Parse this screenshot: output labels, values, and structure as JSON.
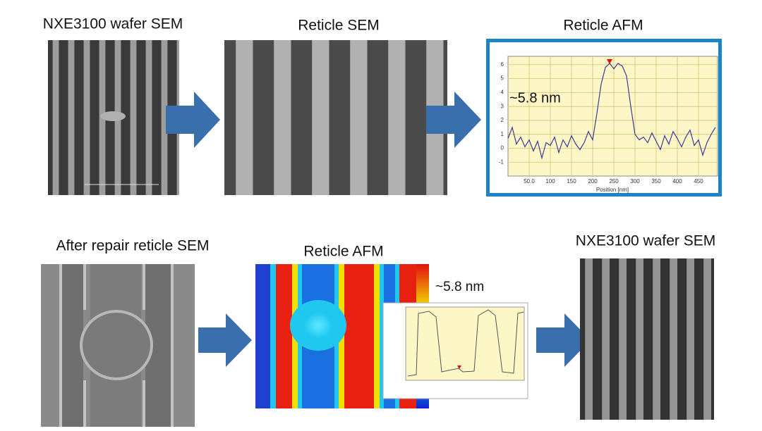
{
  "top": {
    "wafer_sem_title": "NXE3100 wafer SEM",
    "reticle_sem_title": "Reticle SEM",
    "afm": {
      "title": "Reticle AFM",
      "annotation": "~5.8 nm",
      "x_label": "Position [nm]",
      "xlim": [
        0,
        495
      ],
      "ylim": [
        -2,
        6.6
      ],
      "xticks": [
        {
          "value": 50,
          "label": "50.0"
        },
        100,
        150,
        200,
        250,
        300,
        350,
        400,
        450
      ],
      "yticks": [
        -1,
        0,
        1,
        2,
        3,
        4,
        5,
        6
      ],
      "grid": true,
      "color": "#3a3a9a",
      "x": [
        0,
        10,
        20,
        30,
        40,
        50,
        60,
        70,
        80,
        90,
        100,
        110,
        120,
        130,
        140,
        150,
        160,
        170,
        180,
        190,
        200,
        210,
        220,
        230,
        240,
        250,
        260,
        270,
        280,
        290,
        300,
        310,
        320,
        330,
        340,
        350,
        360,
        370,
        380,
        390,
        400,
        410,
        420,
        430,
        440,
        450,
        460,
        470,
        480,
        490
      ],
      "values": [
        0.7,
        1.5,
        0.3,
        0.8,
        0.1,
        0.6,
        -0.2,
        0.5,
        -0.7,
        0.4,
        0.2,
        0.8,
        -0.3,
        0.6,
        0.1,
        0.9,
        0.3,
        -0.1,
        0.4,
        1.2,
        0.6,
        2.5,
        4.6,
        5.8,
        6.1,
        5.7,
        6.1,
        5.9,
        5.2,
        3.0,
        1.0,
        0.6,
        0.8,
        0.4,
        1.1,
        0.5,
        -0.1,
        0.9,
        0.3,
        1.2,
        0.7,
        0.1,
        0.8,
        1.3,
        0.2,
        0.6,
        -0.5,
        0.4,
        1.0,
        1.5
      ]
    }
  },
  "bottom": {
    "repair_sem_title": "After repair reticle SEM",
    "afm_title": "Reticle AFM",
    "afm_annotation": "~5.8 nm",
    "wafer_sem_title": "NXE3100 wafer SEM"
  }
}
